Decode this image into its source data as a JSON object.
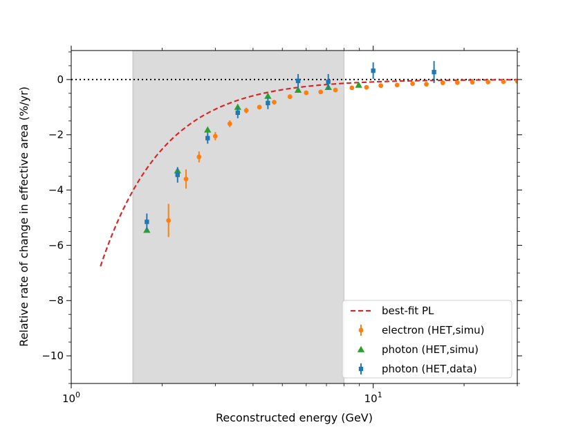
{
  "chart_data": {
    "type": "scatter",
    "title": "",
    "xlabel": "Reconstructed energy (GeV)",
    "ylabel": "Relative rate of change in effective area (%/yr)",
    "xscale": "log",
    "xlim": [
      1.0,
      30.0
    ],
    "ylim": [
      -11.0,
      1.05
    ],
    "x_major_ticks": [
      {
        "value": 1,
        "base": "10",
        "exp": "0"
      },
      {
        "value": 10,
        "base": "10",
        "exp": "1"
      }
    ],
    "y_ticks": [
      {
        "value": 0,
        "label": "0"
      },
      {
        "value": -2,
        "label": "−2"
      },
      {
        "value": -4,
        "label": "−4"
      },
      {
        "value": -6,
        "label": "−6"
      },
      {
        "value": -8,
        "label": "−8"
      },
      {
        "value": -10,
        "label": "−10"
      }
    ],
    "shaded_region": {
      "x_start": 1.6,
      "x_end": 8.0,
      "color": "#d9d9d9"
    },
    "reference_line": {
      "y": 0,
      "style": "dotted",
      "color": "#000000"
    },
    "fit_curve": {
      "name": "best-fit PL",
      "color": "#d62728",
      "style": "dashed",
      "amplitude": 10.8,
      "index": -2.1,
      "x_start": 1.25,
      "x_end": 30.0
    },
    "legend_position": "lower-right",
    "legend_entries": [
      "best-fit PL",
      "electron (HET,simu)",
      "photon (HET,simu)",
      "photon (HET,data)"
    ],
    "series": [
      {
        "name": "electron (HET,simu)",
        "marker": "circle",
        "color": "#ff7f0e",
        "points": [
          {
            "x": 2.1,
            "y": -5.1,
            "err": 0.6
          },
          {
            "x": 2.4,
            "y": -3.6,
            "err": 0.35
          },
          {
            "x": 2.65,
            "y": -2.8,
            "err": 0.2
          },
          {
            "x": 3.0,
            "y": -2.05,
            "err": 0.15
          },
          {
            "x": 3.35,
            "y": -1.6,
            "err": 0.12
          },
          {
            "x": 3.8,
            "y": -1.12,
            "err": 0.1
          },
          {
            "x": 4.2,
            "y": -1.0,
            "err": 0.08
          },
          {
            "x": 4.7,
            "y": -0.82,
            "err": 0.07
          },
          {
            "x": 5.3,
            "y": -0.62,
            "err": 0.06
          },
          {
            "x": 6.0,
            "y": -0.48,
            "err": 0.05
          },
          {
            "x": 6.7,
            "y": -0.45,
            "err": 0.05
          },
          {
            "x": 7.5,
            "y": -0.38,
            "err": 0.04
          },
          {
            "x": 8.5,
            "y": -0.3,
            "err": 0.04
          },
          {
            "x": 9.5,
            "y": -0.28,
            "err": 0.04
          },
          {
            "x": 10.6,
            "y": -0.22,
            "err": 0.03
          },
          {
            "x": 12.0,
            "y": -0.2,
            "err": 0.03
          },
          {
            "x": 13.5,
            "y": -0.15,
            "err": 0.03
          },
          {
            "x": 15.0,
            "y": -0.17,
            "err": 0.03
          },
          {
            "x": 17.0,
            "y": -0.12,
            "err": 0.03
          },
          {
            "x": 19.0,
            "y": -0.11,
            "err": 0.03
          },
          {
            "x": 21.3,
            "y": -0.1,
            "err": 0.03
          },
          {
            "x": 24.0,
            "y": -0.09,
            "err": 0.03
          },
          {
            "x": 27.0,
            "y": -0.08,
            "err": 0.03
          },
          {
            "x": 30.0,
            "y": -0.06,
            "err": 0.03
          }
        ]
      },
      {
        "name": "photon (HET,simu)",
        "marker": "triangle",
        "color": "#2ca02c",
        "points": [
          {
            "x": 1.78,
            "y": -5.45
          },
          {
            "x": 2.25,
            "y": -3.3
          },
          {
            "x": 2.83,
            "y": -1.82
          },
          {
            "x": 3.56,
            "y": -1.0
          },
          {
            "x": 4.48,
            "y": -0.6
          },
          {
            "x": 5.64,
            "y": -0.38
          },
          {
            "x": 7.1,
            "y": -0.28
          },
          {
            "x": 8.95,
            "y": -0.2
          }
        ]
      },
      {
        "name": "photon (HET,data)",
        "marker": "square",
        "color": "#1f77b4",
        "points": [
          {
            "x": 1.78,
            "y": -5.15,
            "err": 0.3
          },
          {
            "x": 2.25,
            "y": -3.45,
            "err": 0.28
          },
          {
            "x": 2.83,
            "y": -2.12,
            "err": 0.2
          },
          {
            "x": 3.56,
            "y": -1.2,
            "err": 0.2
          },
          {
            "x": 4.48,
            "y": -0.85,
            "err": 0.22
          },
          {
            "x": 5.64,
            "y": -0.05,
            "err": 0.25
          },
          {
            "x": 7.1,
            "y": -0.08,
            "err": 0.28
          },
          {
            "x": 10.0,
            "y": 0.32,
            "err": 0.3
          },
          {
            "x": 15.9,
            "y": 0.27,
            "err": 0.4
          }
        ]
      }
    ]
  }
}
